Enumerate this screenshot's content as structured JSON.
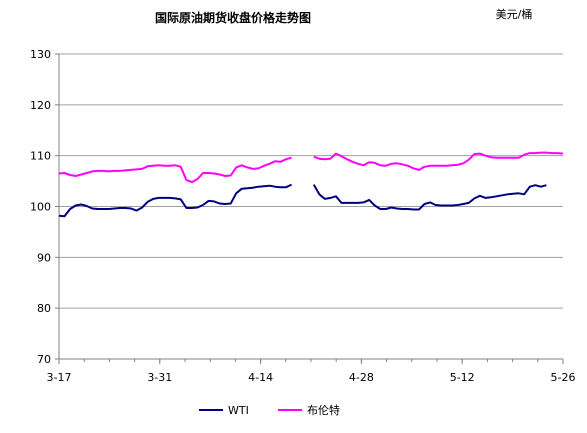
{
  "chart_data": {
    "type": "line",
    "title": "国际原油期货收盘价格走势图",
    "unit_label": "美元/桶",
    "ylim": [
      70,
      130
    ],
    "yticks": [
      130,
      120,
      110,
      100,
      90,
      80,
      70
    ],
    "xticks": [
      "3-17",
      "3-31",
      "4-14",
      "4-28",
      "5-12",
      "5-26"
    ],
    "grid": "horizontal",
    "legend": "bottom",
    "series": [
      {
        "name": "WTI",
        "color": "#000080",
        "segments": [
          [
            [
              0,
              98.2
            ],
            [
              1,
              98.1
            ],
            [
              2,
              99.5
            ],
            [
              3,
              100.2
            ],
            [
              4,
              100.4
            ],
            [
              5,
              100.1
            ],
            [
              6,
              99.6
            ],
            [
              7,
              99.5
            ],
            [
              8,
              99.5
            ],
            [
              9,
              99.5
            ],
            [
              10,
              99.6
            ],
            [
              11,
              99.7
            ],
            [
              12,
              99.7
            ],
            [
              13,
              99.6
            ],
            [
              14,
              99.2
            ],
            [
              15,
              99.8
            ],
            [
              16,
              100.9
            ],
            [
              17,
              101.5
            ],
            [
              18,
              101.7
            ],
            [
              19,
              101.7
            ],
            [
              20,
              101.7
            ],
            [
              21,
              101.6
            ],
            [
              22,
              101.4
            ],
            [
              23,
              99.7
            ],
            [
              24,
              99.7
            ],
            [
              25,
              99.8
            ],
            [
              26,
              100.3
            ],
            [
              27,
              101.1
            ],
            [
              28,
              101.0
            ],
            [
              29,
              100.6
            ],
            [
              30,
              100.5
            ],
            [
              31,
              100.6
            ],
            [
              32,
              102.6
            ],
            [
              33,
              103.5
            ],
            [
              34,
              103.6
            ],
            [
              35,
              103.7
            ],
            [
              36,
              103.9
            ],
            [
              37,
              104.0
            ],
            [
              38,
              104.1
            ],
            [
              39,
              103.9
            ],
            [
              40,
              103.8
            ],
            [
              41,
              103.8
            ],
            [
              42,
              104.3
            ]
          ],
          [
            [
              46,
              104.3
            ],
            [
              47,
              102.4
            ],
            [
              48,
              101.5
            ],
            [
              49,
              101.7
            ],
            [
              50,
              102.0
            ],
            [
              51,
              100.7
            ],
            [
              52,
              100.7
            ],
            [
              53,
              100.7
            ],
            [
              54,
              100.7
            ],
            [
              55,
              100.8
            ],
            [
              56,
              101.3
            ],
            [
              57,
              100.2
            ],
            [
              58,
              99.5
            ],
            [
              59,
              99.5
            ],
            [
              60,
              99.8
            ],
            [
              61,
              99.6
            ],
            [
              62,
              99.5
            ],
            [
              63,
              99.5
            ],
            [
              64,
              99.4
            ],
            [
              65,
              99.4
            ],
            [
              66,
              100.5
            ],
            [
              67,
              100.8
            ],
            [
              68,
              100.3
            ],
            [
              69,
              100.2
            ],
            [
              70,
              100.2
            ],
            [
              71,
              100.2
            ],
            [
              72,
              100.3
            ],
            [
              73,
              100.5
            ],
            [
              74,
              100.7
            ],
            [
              75,
              101.6
            ],
            [
              76,
              102.1
            ],
            [
              77,
              101.7
            ],
            [
              78,
              101.8
            ],
            [
              79,
              102.0
            ],
            [
              80,
              102.2
            ],
            [
              81,
              102.4
            ],
            [
              82,
              102.5
            ],
            [
              83,
              102.6
            ],
            [
              84,
              102.4
            ],
            [
              85,
              103.9
            ],
            [
              86,
              104.2
            ],
            [
              87,
              103.9
            ],
            [
              88,
              104.2
            ]
          ]
        ]
      },
      {
        "name": "布伦特",
        "color": "#ff00ff",
        "segments": [
          [
            [
              0,
              106.5
            ],
            [
              1,
              106.6
            ],
            [
              2,
              106.2
            ],
            [
              3,
              106.0
            ],
            [
              4,
              106.3
            ],
            [
              5,
              106.6
            ],
            [
              6,
              106.9
            ],
            [
              7,
              107.0
            ],
            [
              8,
              107.0
            ],
            [
              9,
              106.9
            ],
            [
              10,
              107.0
            ],
            [
              11,
              107.0
            ],
            [
              12,
              107.1
            ],
            [
              13,
              107.2
            ],
            [
              14,
              107.3
            ],
            [
              15,
              107.4
            ],
            [
              16,
              107.9
            ],
            [
              17,
              108.0
            ],
            [
              18,
              108.1
            ],
            [
              19,
              108.0
            ],
            [
              20,
              108.0
            ],
            [
              21,
              108.1
            ],
            [
              22,
              107.8
            ],
            [
              23,
              105.2
            ],
            [
              24,
              104.8
            ],
            [
              25,
              105.4
            ],
            [
              26,
              106.6
            ],
            [
              27,
              106.6
            ],
            [
              28,
              106.5
            ],
            [
              29,
              106.3
            ],
            [
              30,
              106.0
            ],
            [
              31,
              106.1
            ],
            [
              32,
              107.7
            ],
            [
              33,
              108.1
            ],
            [
              34,
              107.7
            ],
            [
              35,
              107.4
            ],
            [
              36,
              107.5
            ],
            [
              37,
              108.0
            ],
            [
              38,
              108.4
            ],
            [
              39,
              108.9
            ],
            [
              40,
              108.8
            ],
            [
              41,
              109.3
            ],
            [
              42,
              109.6
            ]
          ],
          [
            [
              46,
              109.8
            ],
            [
              47,
              109.4
            ],
            [
              48,
              109.3
            ],
            [
              49,
              109.4
            ],
            [
              50,
              110.4
            ],
            [
              51,
              109.9
            ],
            [
              52,
              109.3
            ],
            [
              53,
              108.8
            ],
            [
              54,
              108.4
            ],
            [
              55,
              108.1
            ],
            [
              56,
              108.7
            ],
            [
              57,
              108.6
            ],
            [
              58,
              108.1
            ],
            [
              59,
              108.0
            ],
            [
              60,
              108.4
            ],
            [
              61,
              108.5
            ],
            [
              62,
              108.3
            ],
            [
              63,
              108.0
            ],
            [
              64,
              107.5
            ],
            [
              65,
              107.2
            ],
            [
              66,
              107.8
            ],
            [
              67,
              108.0
            ],
            [
              68,
              108.0
            ],
            [
              69,
              108.0
            ],
            [
              70,
              108.0
            ],
            [
              71,
              108.1
            ],
            [
              72,
              108.2
            ],
            [
              73,
              108.5
            ],
            [
              74,
              109.2
            ],
            [
              75,
              110.3
            ],
            [
              76,
              110.4
            ],
            [
              77,
              110.0
            ],
            [
              78,
              109.7
            ],
            [
              79,
              109.6
            ],
            [
              80,
              109.6
            ],
            [
              81,
              109.6
            ],
            [
              82,
              109.6
            ],
            [
              83,
              109.6
            ],
            [
              84,
              110.2
            ],
            [
              85,
              110.5
            ],
            [
              86,
              110.5
            ],
            [
              87,
              110.6
            ],
            [
              88,
              110.6
            ],
            [
              89,
              110.5
            ],
            [
              90,
              110.5
            ],
            [
              91,
              110.4
            ]
          ]
        ]
      }
    ]
  }
}
